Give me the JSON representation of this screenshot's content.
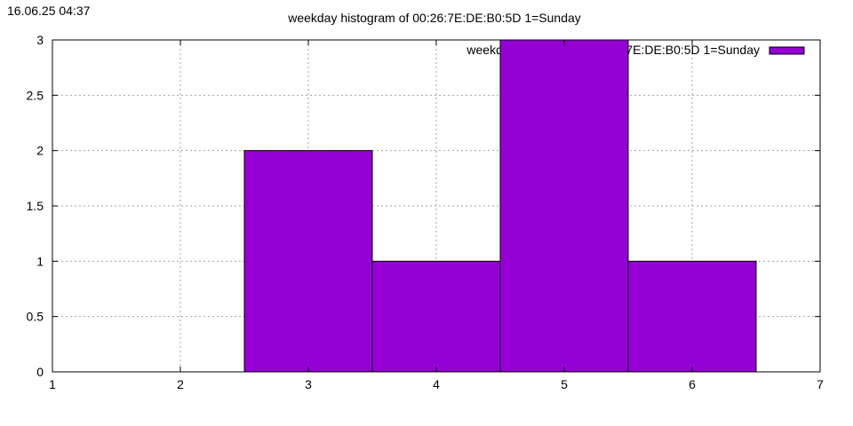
{
  "timestamp": "16.06.25 04:37",
  "chart_data": {
    "type": "bar",
    "title": "weekday histogram of 00:26:7E:DE:B0:5D 1=Sunday",
    "x": [
      3,
      4,
      5,
      6
    ],
    "values": [
      2,
      1,
      3,
      1
    ],
    "bar_width": 1,
    "xlim": [
      1,
      7
    ],
    "ylim": [
      0,
      3
    ],
    "xticks": [
      "1",
      "2",
      "3",
      "4",
      "5",
      "6",
      "7"
    ],
    "yticks": [
      "0",
      "0.5",
      "1",
      "1.5",
      "2",
      "2.5",
      "3"
    ],
    "grid": true,
    "legend": {
      "label": "weekday histogram of 00:26:7E:DE:B0:5D 1=Sunday",
      "position": "top-right"
    },
    "color": "#9400d3"
  }
}
